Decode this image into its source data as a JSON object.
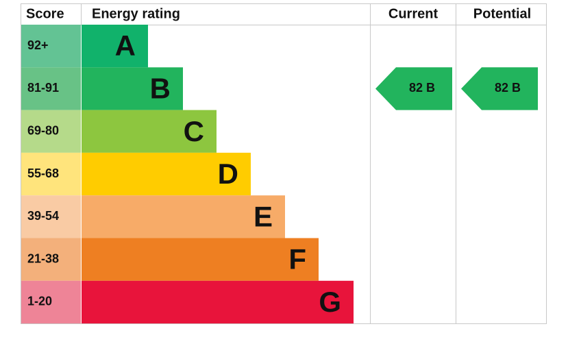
{
  "header": {
    "score": "Score",
    "rating": "Energy rating",
    "current": "Current",
    "potential": "Potential"
  },
  "bands": [
    {
      "score": "92+",
      "letter": "A",
      "color": "#11b26b",
      "score_color": "#63c394"
    },
    {
      "score": "81-91",
      "letter": "B",
      "color": "#22b45d",
      "score_color": "#68c286"
    },
    {
      "score": "69-80",
      "letter": "C",
      "color": "#8dc63f",
      "score_color": "#b5da8a"
    },
    {
      "score": "55-68",
      "letter": "D",
      "color": "#ffcc00",
      "score_color": "#ffe47c"
    },
    {
      "score": "39-54",
      "letter": "E",
      "color": "#f7ab68",
      "score_color": "#f9cba4"
    },
    {
      "score": "21-38",
      "letter": "F",
      "color": "#ee7f22",
      "score_color": "#f3b07b"
    },
    {
      "score": "1-20",
      "letter": "G",
      "color": "#e8143b",
      "score_color": "#ee8497"
    }
  ],
  "current": {
    "label": "82 B",
    "band": 1,
    "color": "#22b45d"
  },
  "potential": {
    "label": "82 B",
    "band": 1,
    "color": "#22b45d"
  }
}
